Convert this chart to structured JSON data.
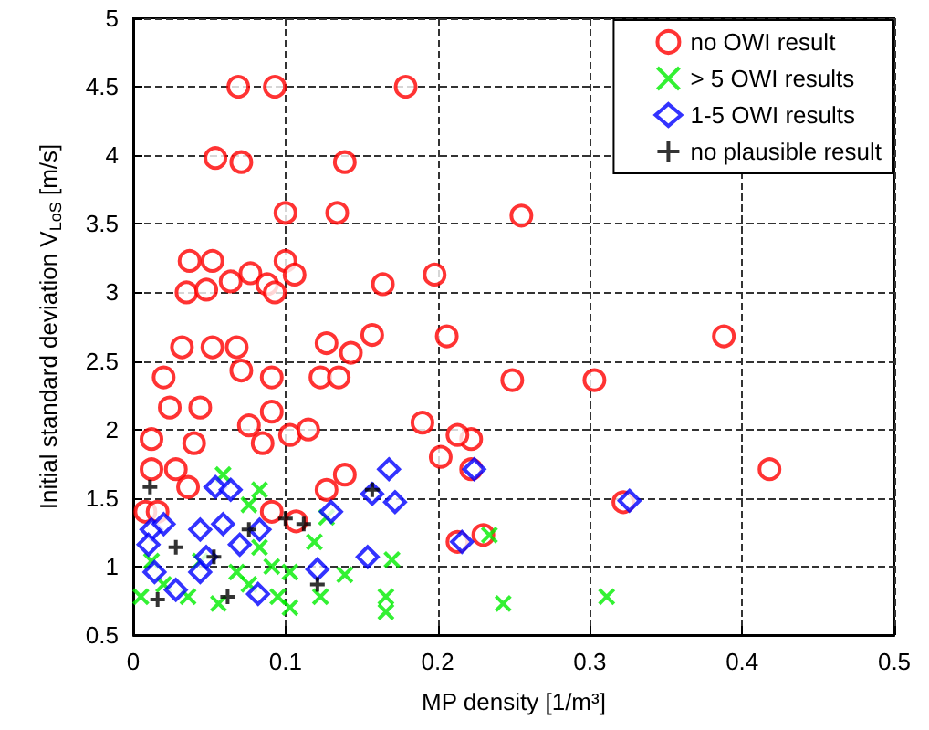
{
  "chart_data": {
    "type": "scatter",
    "xlabel": "MP density [1/m³]",
    "ylabel": "Initial standard deviation V$_{LoS}$ [m/s]",
    "xlim": [
      0,
      0.5
    ],
    "xticks": [
      0,
      0.1,
      0.2,
      0.3,
      0.4,
      0.5
    ],
    "ylim": [
      0.5,
      5
    ],
    "yticks": [
      0.5,
      1,
      1.5,
      2,
      2.5,
      3,
      3.5,
      4,
      4.5,
      5
    ],
    "grid": true,
    "line_style": "dashed",
    "legend": "top right",
    "series": [
      {
        "name": "no OWI result",
        "color": "#ff0000",
        "marker": "circle",
        "x": [
          0.069,
          0.093,
          0.179,
          0.054,
          0.071,
          0.139,
          0.1,
          0.134,
          0.037,
          0.052,
          0.064,
          0.077,
          0.088,
          0.093,
          0.1,
          0.106,
          0.035,
          0.048,
          0.164,
          0.198,
          0.255,
          0.388,
          0.249,
          0.303,
          0.418,
          0.322,
          0.222,
          0.23,
          0.127,
          0.157,
          0.143,
          0.206,
          0.032,
          0.052,
          0.068,
          0.071,
          0.091,
          0.123,
          0.135,
          0.02,
          0.024,
          0.044,
          0.076,
          0.091,
          0.103,
          0.115,
          0.085,
          0.19,
          0.213,
          0.202,
          0.222,
          0.139,
          0.127,
          0.091,
          0.107,
          0.012,
          0.028,
          0.036,
          0.012,
          0.04,
          0.213,
          0.008,
          0.016
        ],
        "values": [
          4.5,
          4.5,
          4.5,
          3.98,
          3.95,
          3.95,
          3.58,
          3.58,
          3.23,
          3.23,
          3.08,
          3.14,
          3.06,
          3.0,
          3.23,
          3.13,
          3.0,
          3.02,
          3.06,
          3.13,
          3.56,
          2.68,
          2.36,
          2.36,
          1.71,
          1.47,
          1.93,
          1.23,
          2.63,
          2.69,
          2.56,
          2.68,
          2.6,
          2.6,
          2.6,
          2.43,
          2.38,
          2.38,
          2.38,
          2.38,
          2.16,
          2.16,
          2.03,
          2.13,
          1.96,
          2.0,
          1.9,
          2.05,
          1.96,
          1.8,
          1.71,
          1.67,
          1.56,
          1.4,
          1.33,
          1.71,
          1.71,
          1.58,
          1.93,
          1.9,
          1.18,
          1.4,
          1.4
        ]
      },
      {
        "name": "> 5 OWI results",
        "color": "#00ee00",
        "marker": "cross",
        "x": [
          0.083,
          0.076,
          0.091,
          0.103,
          0.123,
          0.139,
          0.166,
          0.166,
          0.036,
          0.02,
          0.056,
          0.076,
          0.103,
          0.119,
          0.127,
          0.044,
          0.012,
          0.083,
          0.068,
          0.005,
          0.095,
          0.17,
          0.059,
          0.243,
          0.311,
          0.234
        ],
        "values": [
          1.56,
          1.45,
          1.0,
          0.7,
          0.78,
          0.94,
          0.78,
          0.67,
          0.78,
          0.87,
          0.73,
          0.87,
          0.96,
          1.18,
          1.36,
          1.04,
          1.04,
          1.14,
          0.96,
          0.78,
          0.78,
          1.05,
          1.67,
          0.73,
          0.78,
          1.23
        ]
      },
      {
        "name": "1-5 OWI results",
        "color": "#0000ff",
        "marker": "diamond",
        "x": [
          0.168,
          0.172,
          0.157,
          0.154,
          0.13,
          0.121,
          0.224,
          0.216,
          0.082,
          0.07,
          0.059,
          0.054,
          0.064,
          0.044,
          0.012,
          0.02,
          0.01,
          0.014,
          0.028,
          0.044,
          0.048,
          0.083,
          0.326
        ],
        "values": [
          1.71,
          1.47,
          1.53,
          1.07,
          1.4,
          0.98,
          1.71,
          1.18,
          0.8,
          1.16,
          1.31,
          1.58,
          1.56,
          1.27,
          1.27,
          1.31,
          1.16,
          0.96,
          0.83,
          0.96,
          1.07,
          1.27,
          1.48
        ]
      },
      {
        "name": "no plausible result",
        "color": "#000000",
        "marker": "plus",
        "x": [
          0.011,
          0.028,
          0.016,
          0.062,
          0.076,
          0.1,
          0.112,
          0.121,
          0.157,
          0.053
        ],
        "values": [
          1.58,
          1.14,
          0.76,
          0.78,
          1.27,
          1.35,
          1.31,
          0.87,
          1.56,
          1.07
        ]
      }
    ]
  }
}
